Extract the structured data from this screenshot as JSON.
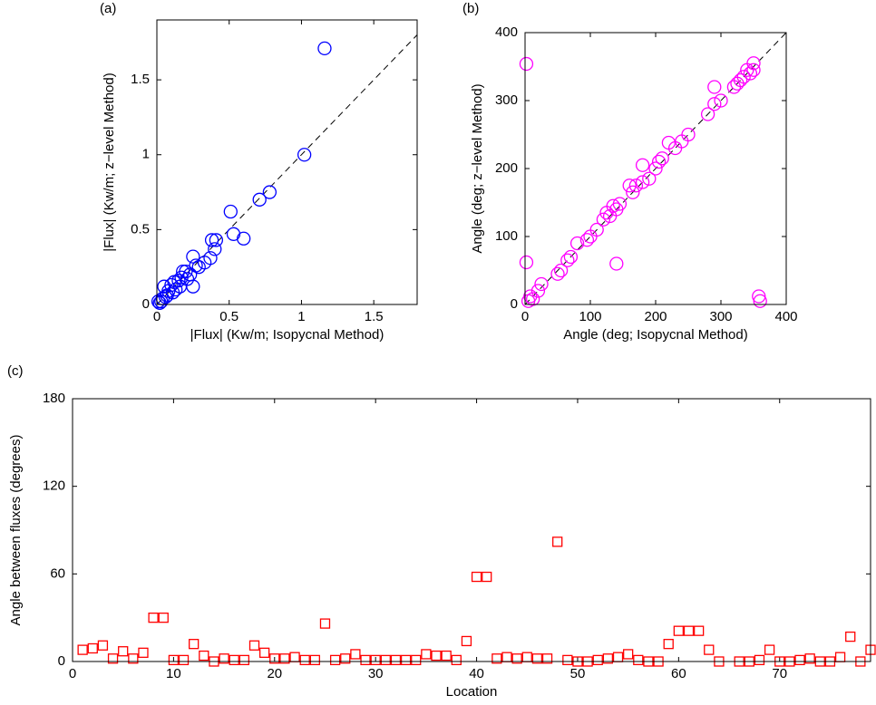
{
  "chart_data": [
    {
      "type": "scatter",
      "label": "(a)",
      "xlabel": "|Flux| (Kw/m; Isopycnal Method)",
      "ylabel": "|Flux| (Kw/m; z−level Method)",
      "marker": "circle",
      "color": "#0000ff",
      "diagonal": true,
      "xlim": [
        0,
        1.8
      ],
      "ylim": [
        0,
        1.9
      ],
      "xticks": [
        0,
        0.5,
        1,
        1.5
      ],
      "yticks": [
        0,
        0.5,
        1,
        1.5
      ],
      "x": [
        1.16,
        1.02,
        0.78,
        0.71,
        0.51,
        0.53,
        0.6,
        0.41,
        0.38,
        0.4,
        0.37,
        0.33,
        0.27,
        0.25,
        0.29,
        0.23,
        0.25,
        0.2,
        0.18,
        0.17,
        0.15,
        0.12,
        0.1,
        0.13,
        0.08,
        0.05,
        0.07,
        0.04,
        0.03,
        0.02,
        0.01,
        0.06,
        0.21,
        0.16,
        0.11
      ],
      "values": [
        1.71,
        1.0,
        0.75,
        0.7,
        0.62,
        0.47,
        0.44,
        0.43,
        0.43,
        0.37,
        0.31,
        0.28,
        0.26,
        0.32,
        0.25,
        0.2,
        0.12,
        0.22,
        0.22,
        0.18,
        0.16,
        0.15,
        0.13,
        0.1,
        0.09,
        0.12,
        0.06,
        0.04,
        0.02,
        0.01,
        0.02,
        0.05,
        0.17,
        0.12,
        0.08
      ]
    },
    {
      "type": "scatter",
      "label": "(b)",
      "xlabel": "Angle (deg; Isopycnal Method)",
      "ylabel": "Angle (deg; z−level Method)",
      "marker": "circle",
      "color": "#ff00ff",
      "diagonal": true,
      "xlim": [
        0,
        400
      ],
      "ylim": [
        0,
        400
      ],
      "xticks": [
        0,
        100,
        200,
        300,
        400
      ],
      "yticks": [
        0,
        100,
        200,
        300,
        400
      ],
      "x": [
        2,
        2,
        8,
        5,
        12,
        20,
        25,
        50,
        55,
        65,
        70,
        80,
        95,
        100,
        110,
        120,
        125,
        130,
        135,
        140,
        145,
        140,
        160,
        165,
        170,
        180,
        180,
        190,
        200,
        205,
        210,
        220,
        230,
        240,
        250,
        280,
        290,
        290,
        300,
        320,
        325,
        330,
        335,
        340,
        345,
        350,
        350,
        358,
        360
      ],
      "values": [
        354,
        62,
        12,
        5,
        8,
        20,
        30,
        45,
        50,
        65,
        70,
        90,
        95,
        100,
        110,
        125,
        135,
        130,
        145,
        140,
        148,
        60,
        175,
        165,
        175,
        180,
        205,
        185,
        200,
        210,
        215,
        238,
        230,
        240,
        250,
        280,
        320,
        295,
        300,
        320,
        325,
        330,
        335,
        345,
        340,
        355,
        345,
        12,
        5
      ]
    },
    {
      "type": "scatter",
      "label": "(c)",
      "xlabel": "Location",
      "ylabel": "Angle between fluxes (degrees)",
      "marker": "square",
      "color": "#ff0000",
      "diagonal": false,
      "xlim": [
        0,
        79
      ],
      "ylim": [
        0,
        180
      ],
      "xticks": [
        0,
        10,
        20,
        30,
        40,
        50,
        60,
        70
      ],
      "yticks": [
        0,
        60,
        120,
        180
      ],
      "x": [
        1,
        2,
        3,
        4,
        5,
        6,
        7,
        8,
        9,
        10,
        11,
        12,
        13,
        14,
        15,
        16,
        17,
        18,
        19,
        20,
        21,
        22,
        23,
        24,
        25,
        26,
        27,
        28,
        29,
        30,
        31,
        32,
        33,
        34,
        35,
        36,
        37,
        38,
        39,
        40,
        41,
        42,
        43,
        44,
        45,
        46,
        47,
        48,
        49,
        50,
        51,
        52,
        53,
        54,
        55,
        56,
        57,
        58,
        59,
        60,
        61,
        62,
        63,
        64,
        66,
        67,
        68,
        69,
        70,
        71,
        72,
        73,
        74,
        75,
        76,
        77,
        78,
        79
      ],
      "values": [
        8,
        9,
        11,
        2,
        7,
        2,
        6,
        30,
        30,
        1,
        1,
        12,
        4,
        0,
        2,
        1,
        1,
        11,
        6,
        2,
        2,
        3,
        1,
        1,
        26,
        1,
        2,
        5,
        1,
        1,
        1,
        1,
        1,
        1,
        5,
        4,
        4,
        1,
        14,
        58,
        58,
        2,
        3,
        2,
        3,
        2,
        2,
        82,
        1,
        0,
        0,
        1,
        2,
        3,
        5,
        1,
        0,
        0,
        12,
        21,
        21,
        21,
        8,
        0,
        0,
        0,
        1,
        8,
        0,
        0,
        1,
        2,
        0,
        0,
        3,
        17,
        0,
        8
      ]
    }
  ]
}
